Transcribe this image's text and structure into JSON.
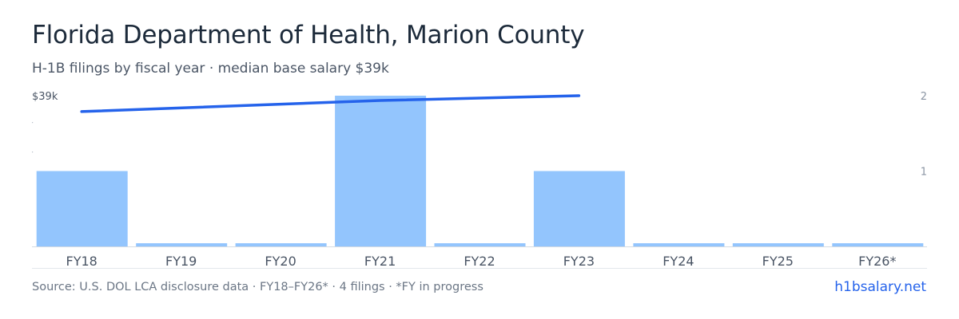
{
  "header": {
    "title": "Florida Department of Health, Marion County",
    "subtitle": "H-1B filings by fiscal year · median base salary $39k"
  },
  "footer": {
    "source": "Source: U.S. DOL LCA disclosure data · FY18–FY26* · 4 filings · *FY in progress",
    "site": "h1bsalary.net"
  },
  "colors": {
    "bar": "#93c5fd",
    "line": "#2563eb",
    "axis_text": "#4a5565",
    "tick_text": "#8a94a3",
    "baseline": "#d5dbe3"
  },
  "chart_data": {
    "type": "bar",
    "categories": [
      "FY18",
      "FY19",
      "FY20",
      "FY21",
      "FY22",
      "FY23",
      "FY24",
      "FY25",
      "FY26*"
    ],
    "series": [
      {
        "type": "bar",
        "axis": "right",
        "values": [
          1,
          0,
          0,
          2,
          0,
          1,
          0,
          0,
          0
        ]
      },
      {
        "type": "line",
        "axis": "left",
        "values": [
          38000,
          null,
          null,
          38700,
          null,
          39000,
          null,
          null,
          null
        ]
      }
    ],
    "left_axis": {
      "tick_labels": [
        "$39k"
      ],
      "top_value": 39000,
      "range": [
        29500,
        39000
      ]
    },
    "right_axis": {
      "tick_labels": [
        "2",
        "1"
      ],
      "range": [
        0,
        2
      ]
    },
    "grid": false,
    "legend": "none"
  }
}
